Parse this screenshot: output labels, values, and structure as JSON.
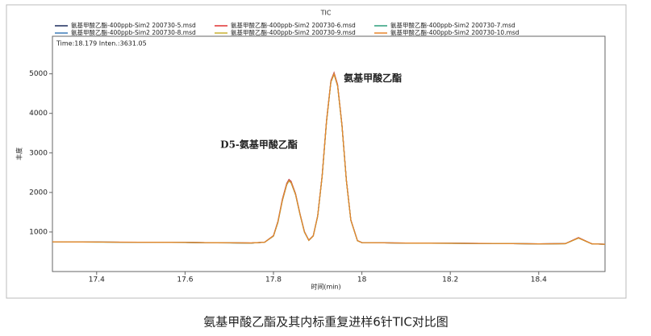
{
  "chart_data": {
    "type": "line",
    "title": "TIC",
    "caption": "氨基甲酸乙酯及其内标重复进样6针TIC对比图",
    "x_label": "时间(min)",
    "y_label": "丰度",
    "cursor_info": "Time:18.179  Inten.:3631.05",
    "annotations": [
      {
        "text": "D5-氨基甲酸乙酯",
        "x": 17.835,
        "y": 2300
      },
      {
        "text": "氨基甲酸乙酯",
        "x": 17.937,
        "y": 5000
      }
    ],
    "xlim": [
      17.3,
      18.55
    ],
    "xticks": [
      17.4,
      17.6,
      17.8,
      18.0,
      18.2,
      18.4
    ],
    "ylim": [
      0,
      5950
    ],
    "yticks": [
      1000,
      2000,
      3000,
      4000,
      5000
    ],
    "x": [
      17.3,
      17.4,
      17.5,
      17.6,
      17.7,
      17.75,
      17.78,
      17.8,
      17.81,
      17.82,
      17.83,
      17.835,
      17.84,
      17.85,
      17.86,
      17.87,
      17.88,
      17.89,
      17.9,
      17.91,
      17.92,
      17.93,
      17.937,
      17.945,
      17.955,
      17.965,
      17.975,
      17.99,
      18.0,
      18.1,
      18.2,
      18.3,
      18.4,
      18.46,
      18.49,
      18.52,
      18.55
    ],
    "series": [
      {
        "name": "氨基甲酸乙酯-400ppb-Sim2 200730-5.msd",
        "color": "#1b2a5c",
        "values": [
          750,
          745,
          740,
          735,
          725,
          722,
          740,
          900,
          1250,
          1800,
          2200,
          2300,
          2250,
          1950,
          1450,
          1000,
          790,
          900,
          1400,
          2400,
          3800,
          4800,
          5000,
          4700,
          3700,
          2300,
          1300,
          780,
          730,
          720,
          715,
          710,
          700,
          705,
          850,
          700,
          690
        ]
      },
      {
        "name": "氨基甲酸乙酯-400ppb-Sim2 200730-6.msd",
        "color": "#e03030",
        "values": [
          752,
          746,
          741,
          736,
          726,
          723,
          742,
          910,
          1270,
          1830,
          2230,
          2330,
          2280,
          1970,
          1460,
          1010,
          795,
          905,
          1410,
          2420,
          3830,
          4830,
          5030,
          4730,
          3720,
          2310,
          1310,
          785,
          732,
          722,
          716,
          711,
          701,
          706,
          860,
          702,
          691
        ]
      },
      {
        "name": "氨基甲酸乙酯-400ppb-Sim2 200730-7.msd",
        "color": "#2a9d7a",
        "values": [
          749,
          744,
          739,
          734,
          724,
          721,
          739,
          895,
          1240,
          1790,
          2190,
          2290,
          2240,
          1940,
          1440,
          995,
          788,
          898,
          1395,
          2390,
          3790,
          4790,
          4990,
          4690,
          3690,
          2290,
          1295,
          778,
          729,
          719,
          714,
          709,
          699,
          704,
          845,
          699,
          689
        ]
      },
      {
        "name": "氨基甲酸乙酯-400ppb-Sim2 200730-8.msd",
        "color": "#3a7ab8",
        "values": [
          751,
          745,
          740,
          735,
          725,
          722,
          741,
          905,
          1260,
          1810,
          2210,
          2310,
          2260,
          1960,
          1455,
          1005,
          792,
          902,
          1405,
          2410,
          3810,
          4810,
          5010,
          4710,
          3710,
          2305,
          1305,
          782,
          731,
          721,
          715,
          710,
          700,
          705,
          855,
          701,
          690
        ]
      },
      {
        "name": "氨基甲酸乙酯-400ppb-Sim2 200730-9.msd",
        "color": "#c8b030",
        "values": [
          750,
          744,
          739,
          735,
          725,
          722,
          740,
          898,
          1245,
          1795,
          2195,
          2295,
          2245,
          1945,
          1445,
          998,
          789,
          899,
          1398,
          2395,
          3795,
          4795,
          4995,
          4695,
          3695,
          2295,
          1298,
          779,
          730,
          720,
          714,
          709,
          700,
          704,
          848,
          700,
          689
        ]
      },
      {
        "name": "氨基甲酸乙酯-400ppb-Sim2 200730-10.msd",
        "color": "#e8862a",
        "values": [
          751,
          746,
          741,
          736,
          726,
          723,
          741,
          902,
          1255,
          1805,
          2205,
          2305,
          2255,
          1955,
          1450,
          1002,
          791,
          901,
          1402,
          2405,
          3805,
          4805,
          5005,
          4705,
          3705,
          2302,
          1302,
          781,
          731,
          721,
          716,
          710,
          701,
          705,
          852,
          701,
          690
        ]
      }
    ]
  }
}
